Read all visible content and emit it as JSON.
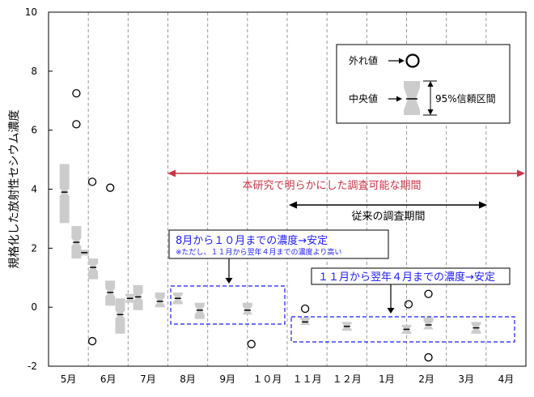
{
  "chart_data": {
    "type": "boxplot",
    "ylabel": "規格化した放射性セシウム濃度",
    "ylim": [
      -2,
      10
    ],
    "yticks": [
      -2,
      0,
      2,
      4,
      6,
      8,
      10
    ],
    "months": [
      "5月",
      "6月",
      "7月",
      "8月",
      "9月",
      "１０月",
      "１１月",
      "１２月",
      "1月",
      "2月",
      "3月",
      "4月"
    ],
    "grid": "vertical dashed lines between months",
    "boxes": [
      {
        "x": 0.4,
        "median": 3.9,
        "low": 2.85,
        "high": 4.85
      },
      {
        "x": 0.7,
        "median": 2.2,
        "low": 1.65,
        "high": 2.75
      },
      {
        "x": 0.9,
        "median": 1.85,
        "low": 1.75,
        "high": 1.95
      },
      {
        "x": 1.12,
        "median": 1.35,
        "low": 0.95,
        "high": 1.65
      },
      {
        "x": 1.55,
        "median": 0.5,
        "low": 0.05,
        "high": 0.9
      },
      {
        "x": 1.8,
        "median": -0.25,
        "low": -0.9,
        "high": 0.3
      },
      {
        "x": 2.05,
        "median": 0.3,
        "low": 0.15,
        "high": 0.45
      },
      {
        "x": 2.25,
        "median": 0.35,
        "low": -0.1,
        "high": 0.75
      },
      {
        "x": 2.8,
        "median": 0.2,
        "low": 0.0,
        "high": 0.5
      },
      {
        "x": 3.25,
        "median": 0.3,
        "low": 0.1,
        "high": 0.5
      },
      {
        "x": 3.8,
        "median": -0.1,
        "low": -0.4,
        "high": 0.15
      },
      {
        "x": 5.0,
        "median": -0.1,
        "low": -0.25,
        "high": 0.15
      },
      {
        "x": 6.45,
        "median": -0.5,
        "low": -0.6,
        "high": -0.35
      },
      {
        "x": 7.5,
        "median": -0.65,
        "low": -0.8,
        "high": -0.5
      },
      {
        "x": 9.0,
        "median": -0.75,
        "low": -0.9,
        "high": -0.6
      },
      {
        "x": 9.55,
        "median": -0.6,
        "low": -0.75,
        "high": -0.35
      },
      {
        "x": 10.75,
        "median": -0.7,
        "low": -0.9,
        "high": -0.5
      }
    ],
    "outliers": [
      {
        "x": 0.7,
        "y": 7.25
      },
      {
        "x": 0.7,
        "y": 6.2
      },
      {
        "x": 1.1,
        "y": 4.25
      },
      {
        "x": 1.55,
        "y": 4.05
      },
      {
        "x": 1.1,
        "y": -1.15
      },
      {
        "x": 5.1,
        "y": -1.25
      },
      {
        "x": 6.45,
        "y": -0.05
      },
      {
        "x": 9.05,
        "y": 0.1
      },
      {
        "x": 9.55,
        "y": 0.45
      },
      {
        "x": 9.55,
        "y": -1.7
      }
    ],
    "legend": {
      "outlier_label": "外れ値",
      "median_label": "中央値",
      "ci_label": "95%信頼区間"
    },
    "annotations": {
      "research_period": "本研究で明らかにした調査可能な期間",
      "conventional_period": "従来の調査期間",
      "aug_oct_title": "8月から１０月までの濃度→安定",
      "aug_oct_note": "※ただし、１１月から翌年４月までの濃度より高い",
      "nov_apr_title": "１１月から翌年４月までの濃度→安定"
    },
    "colors": {
      "box_fill": "#cccccc",
      "research_arrow": "#cc3344",
      "group_box": "#1a1aff",
      "grid": "#999999"
    }
  }
}
